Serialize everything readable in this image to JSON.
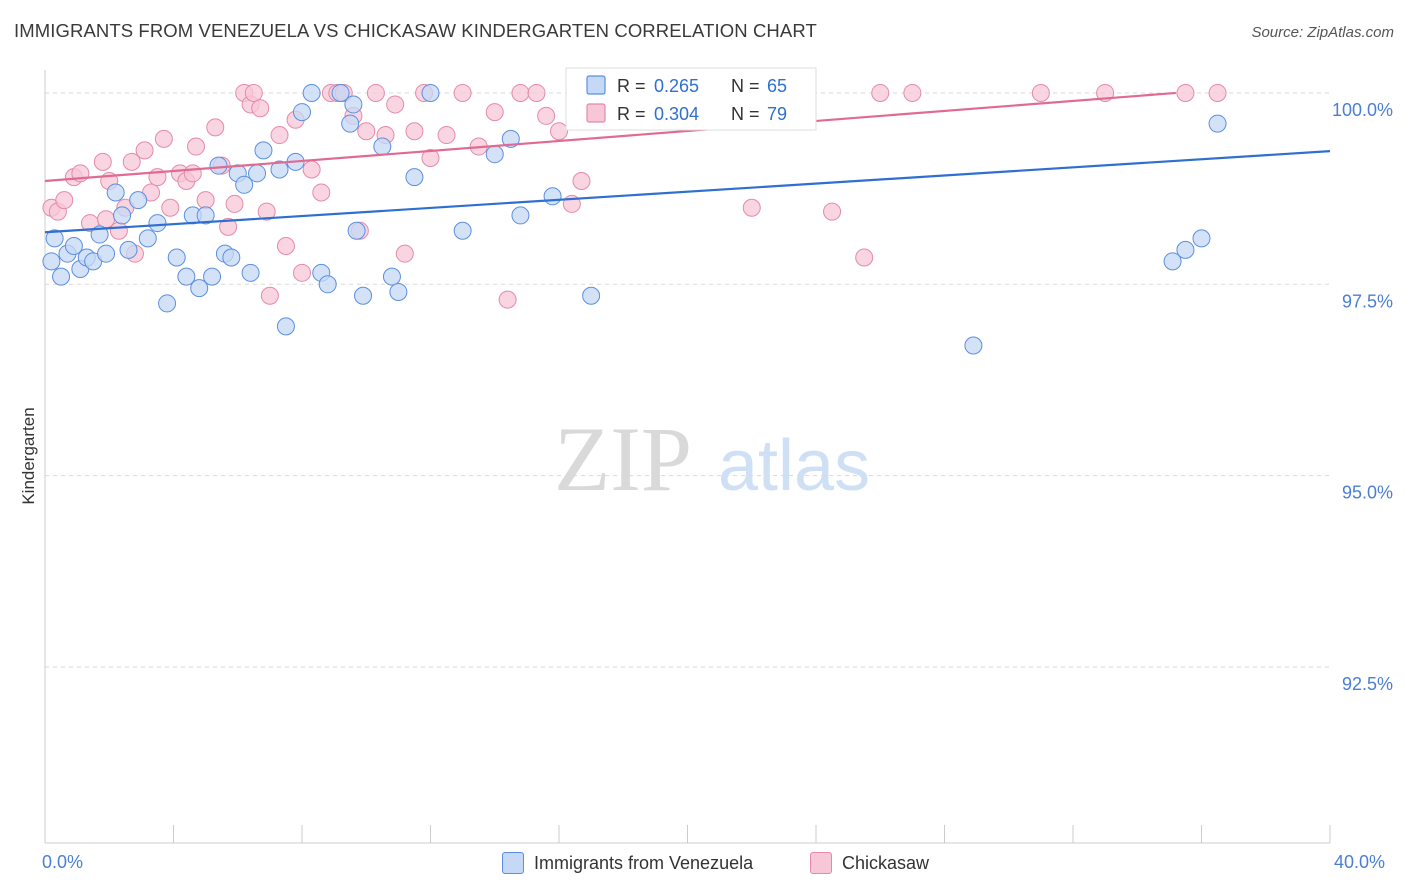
{
  "title": "IMMIGRANTS FROM VENEZUELA VS CHICKASAW KINDERGARTEN CORRELATION CHART",
  "source": "Source: ZipAtlas.com",
  "watermark": {
    "zip": "ZIP",
    "atlas": "atlas"
  },
  "colors": {
    "blue_fill": "#c5d8f5",
    "blue_stroke": "#5b8fe0",
    "blue_line": "#2f6fd0",
    "pink_fill": "#f7c7d7",
    "pink_stroke": "#e58aa8",
    "pink_line": "#e06a92",
    "axis_text": "#4a7fd4",
    "grid": "#d8d8d8"
  },
  "legend_top": [
    {
      "r_label": "R =",
      "r_value": "0.265",
      "n_label": "N =",
      "n_value": "65",
      "color": "blue"
    },
    {
      "r_label": "R =",
      "r_value": "0.304",
      "n_label": "N =",
      "n_value": "79",
      "color": "pink"
    }
  ],
  "chart_data": {
    "type": "scatter",
    "title": "IMMIGRANTS FROM VENEZUELA VS CHICKASAW KINDERGARTEN CORRELATION CHART",
    "xlabel": "",
    "ylabel": "Kindergarten",
    "xlim": [
      0,
      40
    ],
    "ylim": [
      90.2,
      100.3
    ],
    "x_tick_labels": [
      "0.0%",
      "40.0%"
    ],
    "y_ticks": [
      100.0,
      97.5,
      95.0,
      92.5
    ],
    "y_tick_labels": [
      "100.0%",
      "97.5%",
      "95.0%",
      "92.5%"
    ],
    "grid": true,
    "legend_placement": "bottom-center",
    "series": [
      {
        "name": "Immigrants from Venezuela",
        "color": "blue",
        "trend": {
          "x0": 0,
          "y0": 98.18,
          "x1": 40,
          "y1": 99.24
        },
        "points": [
          [
            0.2,
            97.8
          ],
          [
            0.3,
            98.1
          ],
          [
            0.5,
            97.6
          ],
          [
            0.7,
            97.9
          ],
          [
            0.9,
            98.0
          ],
          [
            1.1,
            97.7
          ],
          [
            1.3,
            97.85
          ],
          [
            1.5,
            97.8
          ],
          [
            1.7,
            98.15
          ],
          [
            1.9,
            97.9
          ],
          [
            2.2,
            98.7
          ],
          [
            2.4,
            98.4
          ],
          [
            2.6,
            97.95
          ],
          [
            2.9,
            98.6
          ],
          [
            3.2,
            98.1
          ],
          [
            3.5,
            98.3
          ],
          [
            3.8,
            97.25
          ],
          [
            4.1,
            97.85
          ],
          [
            4.4,
            97.6
          ],
          [
            4.6,
            98.4
          ],
          [
            4.8,
            97.45
          ],
          [
            5.0,
            98.4
          ],
          [
            5.2,
            97.6
          ],
          [
            5.4,
            99.05
          ],
          [
            5.6,
            97.9
          ],
          [
            5.8,
            97.85
          ],
          [
            6.0,
            98.95
          ],
          [
            6.2,
            98.8
          ],
          [
            6.4,
            97.65
          ],
          [
            6.6,
            98.95
          ],
          [
            6.8,
            99.25
          ],
          [
            7.3,
            99.0
          ],
          [
            7.5,
            96.95
          ],
          [
            7.8,
            99.1
          ],
          [
            8.0,
            99.75
          ],
          [
            8.3,
            100.0
          ],
          [
            8.6,
            97.65
          ],
          [
            8.8,
            97.5
          ],
          [
            9.2,
            100.0
          ],
          [
            9.5,
            99.6
          ],
          [
            9.6,
            99.85
          ],
          [
            9.7,
            98.2
          ],
          [
            9.9,
            97.35
          ],
          [
            10.5,
            99.3
          ],
          [
            10.8,
            97.6
          ],
          [
            11.0,
            97.4
          ],
          [
            11.5,
            98.9
          ],
          [
            12.0,
            100.0
          ],
          [
            13.0,
            98.2
          ],
          [
            14.0,
            99.2
          ],
          [
            14.5,
            99.4
          ],
          [
            14.8,
            98.4
          ],
          [
            15.8,
            98.65
          ],
          [
            17.0,
            97.35
          ],
          [
            17.8,
            100.0
          ],
          [
            18.2,
            100.0
          ],
          [
            18.5,
            100.0
          ],
          [
            19.0,
            100.0
          ],
          [
            20.0,
            100.0
          ],
          [
            21.0,
            100.0
          ],
          [
            28.9,
            96.7
          ],
          [
            35.1,
            97.8
          ],
          [
            35.5,
            97.95
          ],
          [
            36.0,
            98.1
          ],
          [
            36.5,
            99.6
          ]
        ]
      },
      {
        "name": "Chickasaw",
        "color": "pink",
        "trend": {
          "x0": 0,
          "y0": 98.85,
          "x1": 35.2,
          "y1": 100.0
        },
        "points": [
          [
            0.2,
            98.5
          ],
          [
            0.4,
            98.45
          ],
          [
            0.6,
            98.6
          ],
          [
            0.9,
            98.9
          ],
          [
            1.1,
            98.95
          ],
          [
            1.4,
            98.3
          ],
          [
            1.8,
            99.1
          ],
          [
            1.9,
            98.35
          ],
          [
            2.0,
            98.85
          ],
          [
            2.3,
            98.2
          ],
          [
            2.5,
            98.5
          ],
          [
            2.7,
            99.1
          ],
          [
            2.8,
            97.9
          ],
          [
            3.1,
            99.25
          ],
          [
            3.3,
            98.7
          ],
          [
            3.5,
            98.9
          ],
          [
            3.7,
            99.4
          ],
          [
            3.9,
            98.5
          ],
          [
            4.2,
            98.95
          ],
          [
            4.4,
            98.85
          ],
          [
            4.6,
            98.95
          ],
          [
            4.7,
            99.3
          ],
          [
            5.0,
            98.6
          ],
          [
            5.3,
            99.55
          ],
          [
            5.5,
            99.05
          ],
          [
            5.7,
            98.25
          ],
          [
            5.9,
            98.55
          ],
          [
            6.2,
            100.0
          ],
          [
            6.4,
            99.85
          ],
          [
            6.5,
            100.0
          ],
          [
            6.7,
            99.8
          ],
          [
            6.9,
            98.45
          ],
          [
            7.0,
            97.35
          ],
          [
            7.3,
            99.45
          ],
          [
            7.5,
            98.0
          ],
          [
            7.8,
            99.65
          ],
          [
            8.0,
            97.65
          ],
          [
            8.3,
            99.0
          ],
          [
            8.6,
            98.7
          ],
          [
            8.9,
            100.0
          ],
          [
            9.1,
            100.0
          ],
          [
            9.3,
            100.0
          ],
          [
            9.6,
            99.7
          ],
          [
            9.8,
            98.2
          ],
          [
            10.0,
            99.5
          ],
          [
            10.3,
            100.0
          ],
          [
            10.6,
            99.45
          ],
          [
            10.9,
            99.85
          ],
          [
            11.2,
            97.9
          ],
          [
            11.5,
            99.5
          ],
          [
            11.8,
            100.0
          ],
          [
            12.0,
            99.15
          ],
          [
            12.5,
            99.45
          ],
          [
            13.0,
            100.0
          ],
          [
            13.5,
            99.3
          ],
          [
            14.0,
            99.75
          ],
          [
            14.4,
            97.3
          ],
          [
            14.8,
            100.0
          ],
          [
            15.3,
            100.0
          ],
          [
            15.6,
            99.7
          ],
          [
            16.0,
            99.5
          ],
          [
            16.4,
            98.55
          ],
          [
            16.7,
            98.85
          ],
          [
            17.5,
            100.0
          ],
          [
            18.0,
            100.0
          ],
          [
            18.5,
            100.0
          ],
          [
            19.0,
            100.0
          ],
          [
            20.0,
            100.0
          ],
          [
            21.0,
            100.0
          ],
          [
            22.0,
            98.5
          ],
          [
            23.0,
            100.0
          ],
          [
            24.5,
            98.45
          ],
          [
            25.5,
            97.85
          ],
          [
            26.0,
            100.0
          ],
          [
            27.0,
            100.0
          ],
          [
            31.0,
            100.0
          ],
          [
            33.0,
            100.0
          ],
          [
            35.5,
            100.0
          ],
          [
            36.5,
            100.0
          ]
        ]
      }
    ]
  },
  "legend_bottom": [
    {
      "label": "Immigrants from Venezuela",
      "color": "blue"
    },
    {
      "label": "Chickasaw",
      "color": "pink"
    }
  ]
}
